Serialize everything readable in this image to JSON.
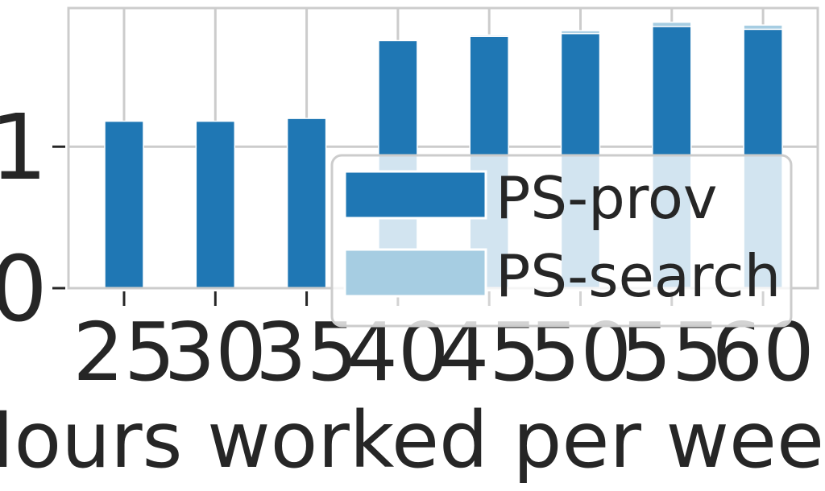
{
  "chart_data": {
    "type": "bar",
    "stacked": true,
    "categories": [
      "25",
      "30",
      "35",
      "40",
      "45",
      "50",
      "55",
      "60"
    ],
    "series": [
      {
        "name": "PS-prov",
        "values": [
          1.18,
          1.18,
          1.2,
          1.75,
          1.78,
          1.8,
          1.85,
          1.83
        ],
        "color": "#1f77b4"
      },
      {
        "name": "PS-search",
        "values": [
          0.0,
          0.0,
          0.0,
          0.0,
          0.01,
          0.02,
          0.03,
          0.03
        ],
        "color": "#a6cde2"
      }
    ],
    "xlabel": "Hours worked per week",
    "ylabel": "",
    "ylim": [
      0,
      1.98
    ],
    "yticks": [
      "0",
      "1"
    ],
    "grid": true,
    "legend_position": "lower-right",
    "colors": {
      "grid": "#cccccc",
      "text": "#262626"
    }
  }
}
